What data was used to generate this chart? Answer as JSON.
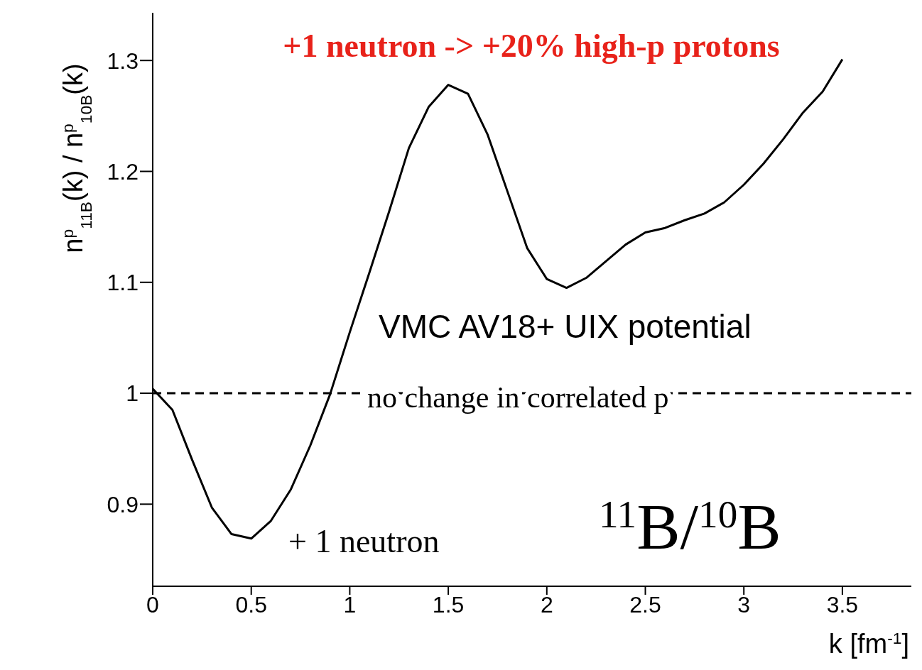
{
  "chart_data": {
    "type": "line",
    "title": "+1 neutron -> +20% high-p protons",
    "xlabel": "k [fm$^{-1}$]",
    "ylabel": "n$^{p}$$_{11B}$(k) / n$^{p}$$_{10B}$(k)",
    "x": [
      0,
      0.1,
      0.2,
      0.3,
      0.4,
      0.5,
      0.6,
      0.7,
      0.8,
      0.9,
      1.0,
      1.1,
      1.2,
      1.3,
      1.4,
      1.5,
      1.6,
      1.7,
      1.8,
      1.9,
      2.0,
      2.1,
      2.2,
      2.3,
      2.4,
      2.5,
      2.6,
      2.7,
      2.8,
      2.9,
      3.0,
      3.1,
      3.2,
      3.3,
      3.4,
      3.5
    ],
    "series": [
      {
        "color": "#000000",
        "values": [
          1.004,
          0.985,
          0.94,
          0.897,
          0.873,
          0.869,
          0.885,
          0.913,
          0.953,
          0.999,
          1.055,
          1.109,
          1.164,
          1.221,
          1.258,
          1.278,
          1.27,
          1.233,
          1.182,
          1.131,
          1.103,
          1.095,
          1.104,
          1.119,
          1.134,
          1.145,
          1.149,
          1.156,
          1.162,
          1.172,
          1.188,
          1.207,
          1.229,
          1.253,
          1.272,
          1.301
        ]
      }
    ],
    "xlim": [
      0,
      3.85
    ],
    "xticks": [
      0,
      0.5,
      1,
      1.5,
      2,
      2.5,
      3,
      3.5
    ],
    "ylim": [
      0.826,
      1.343
    ],
    "yticks": [
      0.9,
      1,
      1.1,
      1.2,
      1.3
    ],
    "ref_lines": [
      {
        "axis": "y",
        "value": 1,
        "label": "no change in correlated p",
        "color": "#000000",
        "line_style": "dashed"
      }
    ],
    "annotations": [
      "VMC  AV18+ UIX potential",
      "+ 1 neutron",
      "$^{11}$B/$^{10}$B"
    ],
    "marker": "none",
    "line_style": "solid",
    "grid": false,
    "legend": false
  }
}
